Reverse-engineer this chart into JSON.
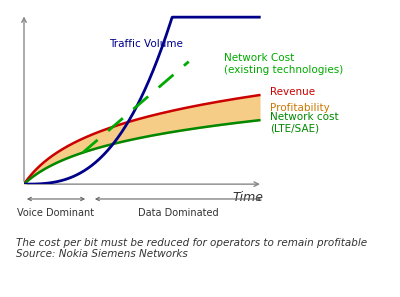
{
  "background_color": "#ffffff",
  "plot_bg_color": "#ffffff",
  "xlabel": "Time",
  "xlabel_fontsize": 9,
  "footnote": "The cost per bit must be reduced for operators to remain profitable\nSource: Nokia Siemens Networks",
  "footnote_fontsize": 7.5,
  "labels": {
    "traffic_volume": "Traffic Volume",
    "network_cost_existing": "Network Cost\n(existing technologies)",
    "revenue": "Revenue",
    "profitability": "Profitability",
    "network_cost_lte": "Network cost\n(LTE/SAE)"
  },
  "colors": {
    "traffic_volume": "#00008B",
    "network_cost_existing": "#00aa00",
    "revenue": "#cc0000",
    "network_cost_lte": "#008800",
    "fill_profitability": "#f5c87a",
    "axis": "#888888",
    "text_traffic": "#00008B",
    "text_nc_exist": "#00aa00",
    "text_revenue": "#cc0000",
    "text_profitability": "#cc7700",
    "text_nc_lte": "#008800"
  },
  "voice_dominant_label": "Voice Dominant",
  "data_dominated_label": "Data Dominated"
}
